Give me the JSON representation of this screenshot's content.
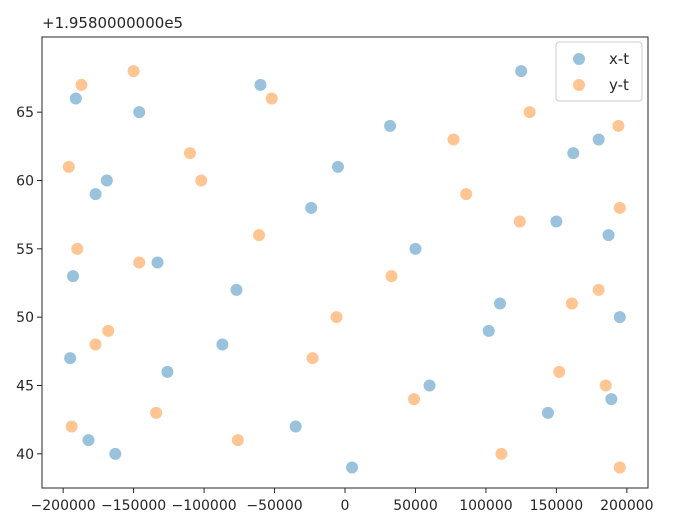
{
  "chart_data": {
    "type": "scatter",
    "offset_label": "+1.9580000000e5",
    "xlim": [
      -215000,
      215000
    ],
    "ylim": [
      37.5,
      70.5
    ],
    "x_ticks": [
      -200000,
      -150000,
      -100000,
      -50000,
      0,
      50000,
      100000,
      150000,
      200000
    ],
    "x_tick_labels": [
      "−200000",
      "−150000",
      "−100000",
      "−50000",
      "0",
      "50000",
      "100000",
      "150000",
      "200000"
    ],
    "y_ticks": [
      40,
      45,
      50,
      55,
      60,
      65
    ],
    "y_tick_labels": [
      "40",
      "45",
      "50",
      "55",
      "60",
      "65"
    ],
    "grid": false,
    "legend_position": "top-right",
    "series": [
      {
        "name": "x-t",
        "color": "#1f77b4",
        "alpha": 0.45,
        "points": [
          [
            -195000,
            47
          ],
          [
            -193000,
            53
          ],
          [
            -191000,
            66
          ],
          [
            -182000,
            41
          ],
          [
            -177000,
            59
          ],
          [
            -169000,
            60
          ],
          [
            -163000,
            40
          ],
          [
            -146000,
            65
          ],
          [
            -133000,
            54
          ],
          [
            -126000,
            46
          ],
          [
            -87000,
            48
          ],
          [
            -77000,
            52
          ],
          [
            -60000,
            67
          ],
          [
            -35000,
            42
          ],
          [
            -24000,
            58
          ],
          [
            -5000,
            61
          ],
          [
            5000,
            39
          ],
          [
            32000,
            64
          ],
          [
            50000,
            55
          ],
          [
            60000,
            45
          ],
          [
            102000,
            49
          ],
          [
            110000,
            51
          ],
          [
            125000,
            68
          ],
          [
            144000,
            43
          ],
          [
            150000,
            57
          ],
          [
            162000,
            62
          ],
          [
            180000,
            63
          ],
          [
            187000,
            56
          ],
          [
            189000,
            44
          ],
          [
            195000,
            50
          ]
        ]
      },
      {
        "name": "y-t",
        "color": "#ff7f0e",
        "alpha": 0.45,
        "points": [
          [
            -196000,
            61
          ],
          [
            -194000,
            42
          ],
          [
            -190000,
            55
          ],
          [
            -187000,
            67
          ],
          [
            -177000,
            48
          ],
          [
            -168000,
            49
          ],
          [
            -150000,
            68
          ],
          [
            -146000,
            54
          ],
          [
            -134000,
            43
          ],
          [
            -110000,
            62
          ],
          [
            -102000,
            60
          ],
          [
            -76000,
            41
          ],
          [
            -61000,
            56
          ],
          [
            -52000,
            66
          ],
          [
            -23000,
            47
          ],
          [
            -6000,
            50
          ],
          [
            33000,
            53
          ],
          [
            49000,
            44
          ],
          [
            77000,
            63
          ],
          [
            86000,
            59
          ],
          [
            111000,
            40
          ],
          [
            124000,
            57
          ],
          [
            131000,
            65
          ],
          [
            152000,
            46
          ],
          [
            161000,
            51
          ],
          [
            180000,
            52
          ],
          [
            185000,
            45
          ],
          [
            194000,
            64
          ],
          [
            195000,
            58
          ],
          [
            195000,
            39
          ]
        ]
      }
    ]
  }
}
